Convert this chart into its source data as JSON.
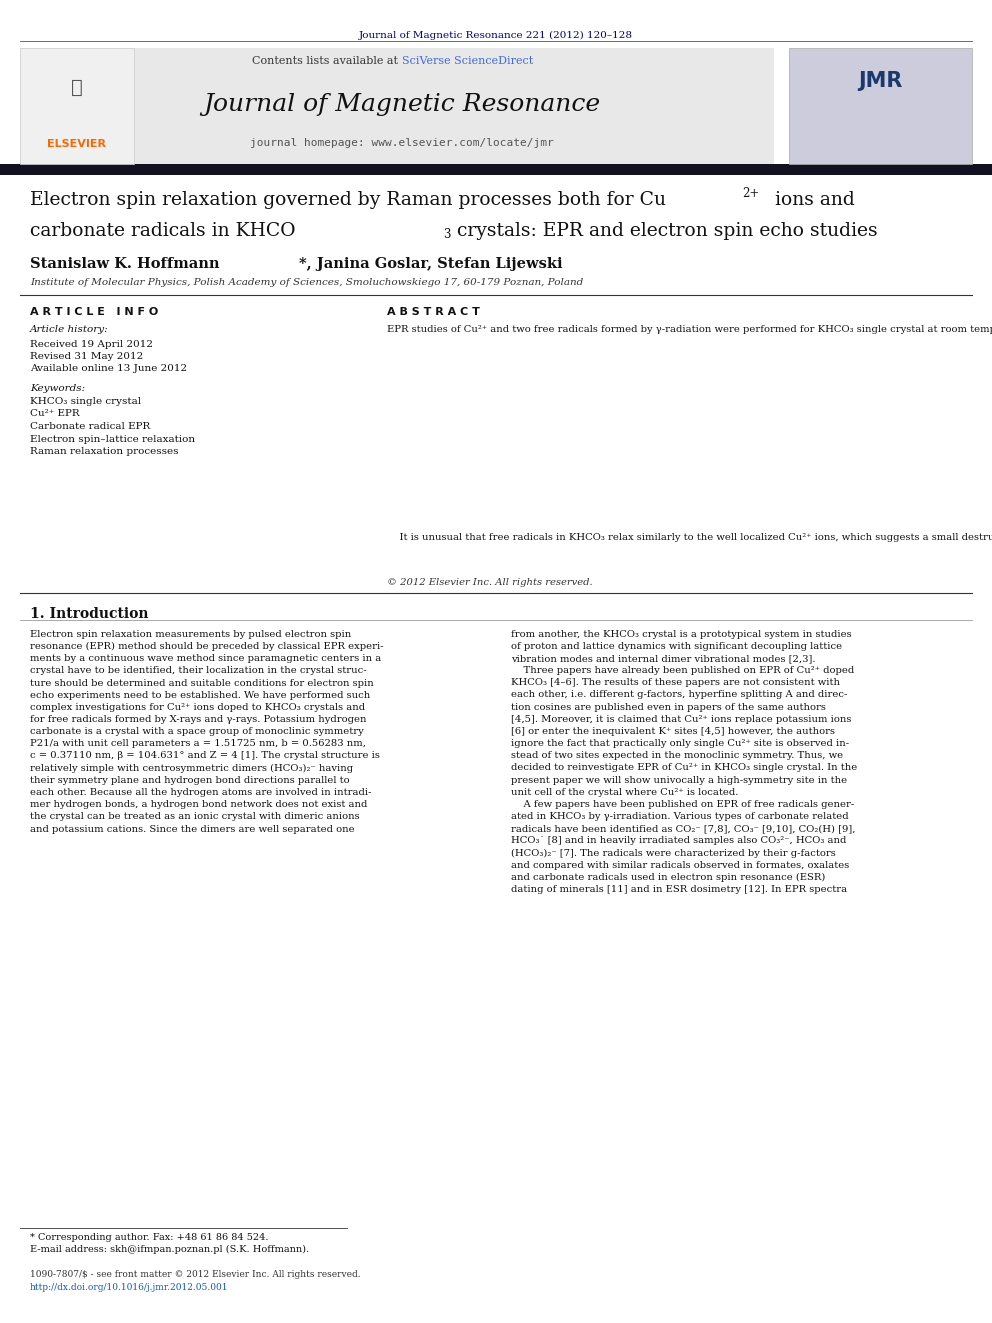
{
  "page_width": 9.92,
  "page_height": 13.23,
  "bg_color": "#ffffff",
  "header_top_text": "Journal of Magnetic Resonance 221 (2012) 120–128",
  "header_top_color": "#00008B",
  "header_bg_color": "#e8e8e8",
  "header_journal_title": "Journal of Magnetic Resonance",
  "header_homepage": "journal homepage: www.elsevier.com/locate/jmr",
  "header_contents": "Contents lists available at ",
  "header_sciverse": "SciVerse ScienceDirect",
  "elsevier_color": "#FF6600",
  "sciverse_color": "#4169E1",
  "article_info_header": "A R T I C L E   I N F O",
  "abstract_header": "A B S T R A C T",
  "article_history_label": "Article history:",
  "received": "Received 19 April 2012",
  "revised": "Revised 31 May 2012",
  "available": "Available online 13 June 2012",
  "keywords_label": "Keywords:",
  "keywords": [
    "KHCO₃ single crystal",
    "Cu²⁺ EPR",
    "Carbonate radical EPR",
    "Electron spin–lattice relaxation",
    "Raman relaxation processes"
  ],
  "affiliation": "Institute of Molecular Physics, Polish Academy of Sciences, Smoluchowskiego 17, 60-179 Poznan, Poland",
  "copyright": "© 2012 Elsevier Inc. All rights reserved.",
  "section1_title": "1. Introduction",
  "footnote_star": "* Corresponding author. Fax: +48 61 86 84 524.",
  "footnote_email": "E-mail address: skh@ifmpan.poznan.pl (S.K. Hoffmann).",
  "footer_issn": "1090-7807/$ - see front matter © 2012 Elsevier Inc. All rights reserved.",
  "footer_doi": "http://dx.doi.org/10.1016/j.jmr.2012.05.001"
}
